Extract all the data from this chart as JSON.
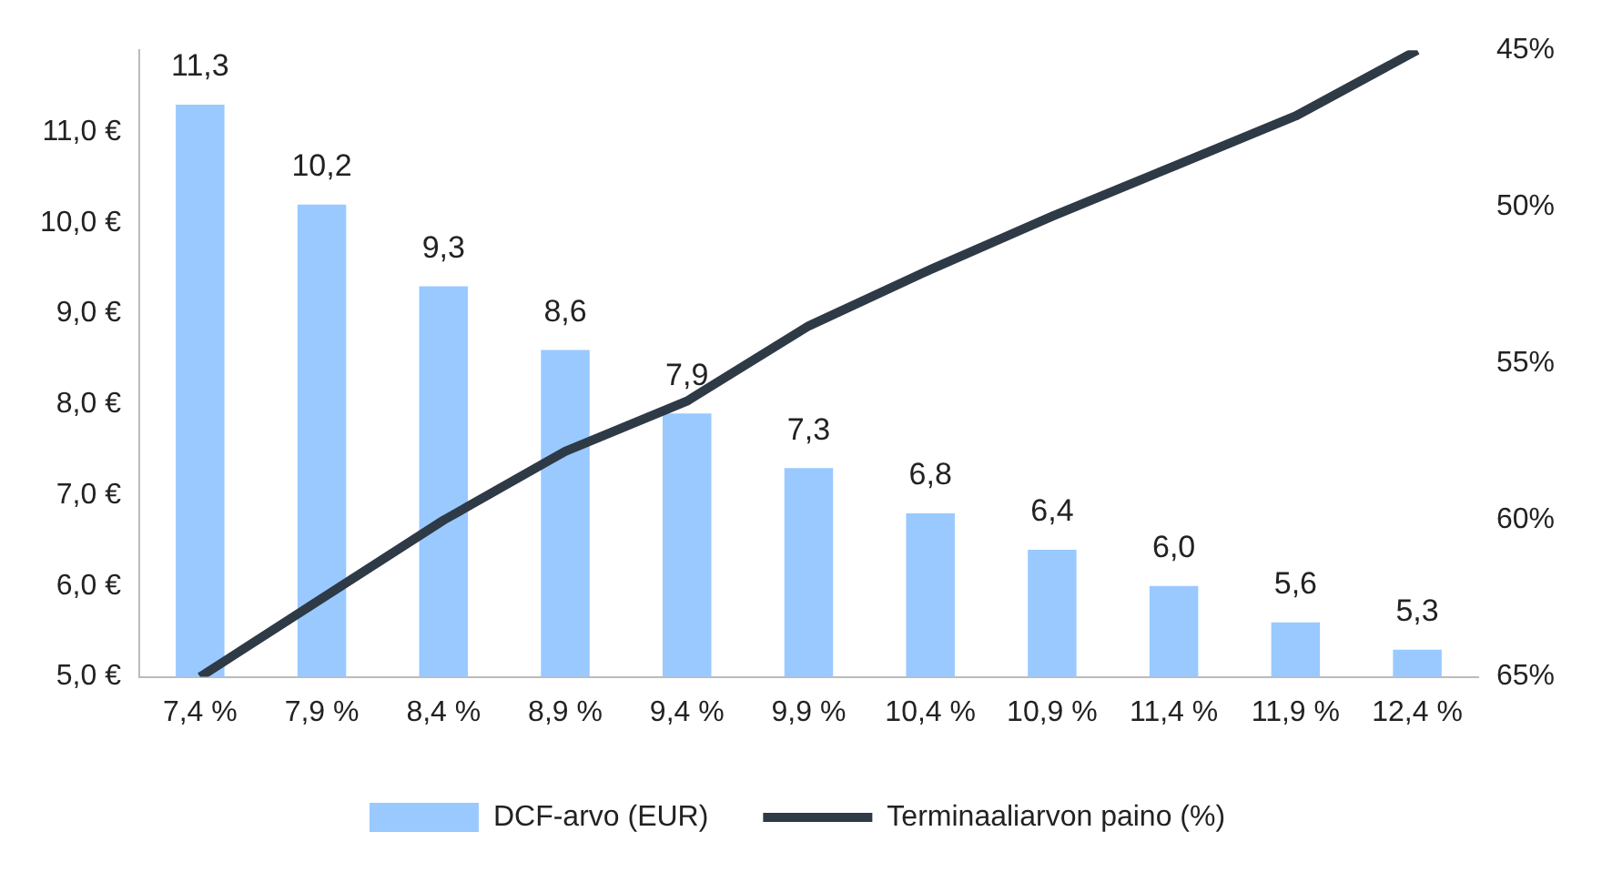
{
  "chart_data": {
    "type": "bar",
    "categories": [
      "7,4 %",
      "7,9 %",
      "8,4 %",
      "8,9 %",
      "9,4 %",
      "9,9 %",
      "10,4 %",
      "10,9 %",
      "11,4 %",
      "11,9 %",
      "12,4 %"
    ],
    "series": [
      {
        "name": "DCF-arvo (EUR)",
        "color": "#99c9ff",
        "values": [
          11.3,
          10.2,
          9.3,
          8.6,
          7.9,
          7.3,
          6.8,
          6.4,
          6.0,
          5.6,
          5.3
        ],
        "value_labels": [
          "11,3",
          "10,2",
          "9,3",
          "8,6",
          "7,9",
          "7,3",
          "6,8",
          "6,4",
          "6,0",
          "5,6",
          "5,3"
        ]
      },
      {
        "name": "Terminaaliarvon paino (%)",
        "type": "line",
        "axis": "y2",
        "color": "#2e3a46",
        "values": [
          65,
          62.5,
          60,
          57.8,
          56.2,
          53.8,
          52,
          50.3,
          48.7,
          47.1,
          45
        ]
      }
    ],
    "ylim": [
      5,
      11.9
    ],
    "yticks": [
      {
        "value": 5,
        "label": "5,0 €"
      },
      {
        "value": 6,
        "label": "6,0 €"
      },
      {
        "value": 7,
        "label": "7,0 €"
      },
      {
        "value": 8,
        "label": "8,0 €"
      },
      {
        "value": 9,
        "label": "9,0 €"
      },
      {
        "value": 10,
        "label": "10,0 €"
      },
      {
        "value": 11,
        "label": "11,0 €"
      }
    ],
    "y2lim": [
      65,
      45
    ],
    "y2ticks": [
      {
        "value": 65,
        "label": "65%"
      },
      {
        "value": 60,
        "label": "60%"
      },
      {
        "value": 55,
        "label": "55%"
      },
      {
        "value": 50,
        "label": "50%"
      },
      {
        "value": 45,
        "label": "45%"
      }
    ],
    "grid": false,
    "legend": "bottom",
    "marker": "none",
    "line_style": "solid"
  }
}
